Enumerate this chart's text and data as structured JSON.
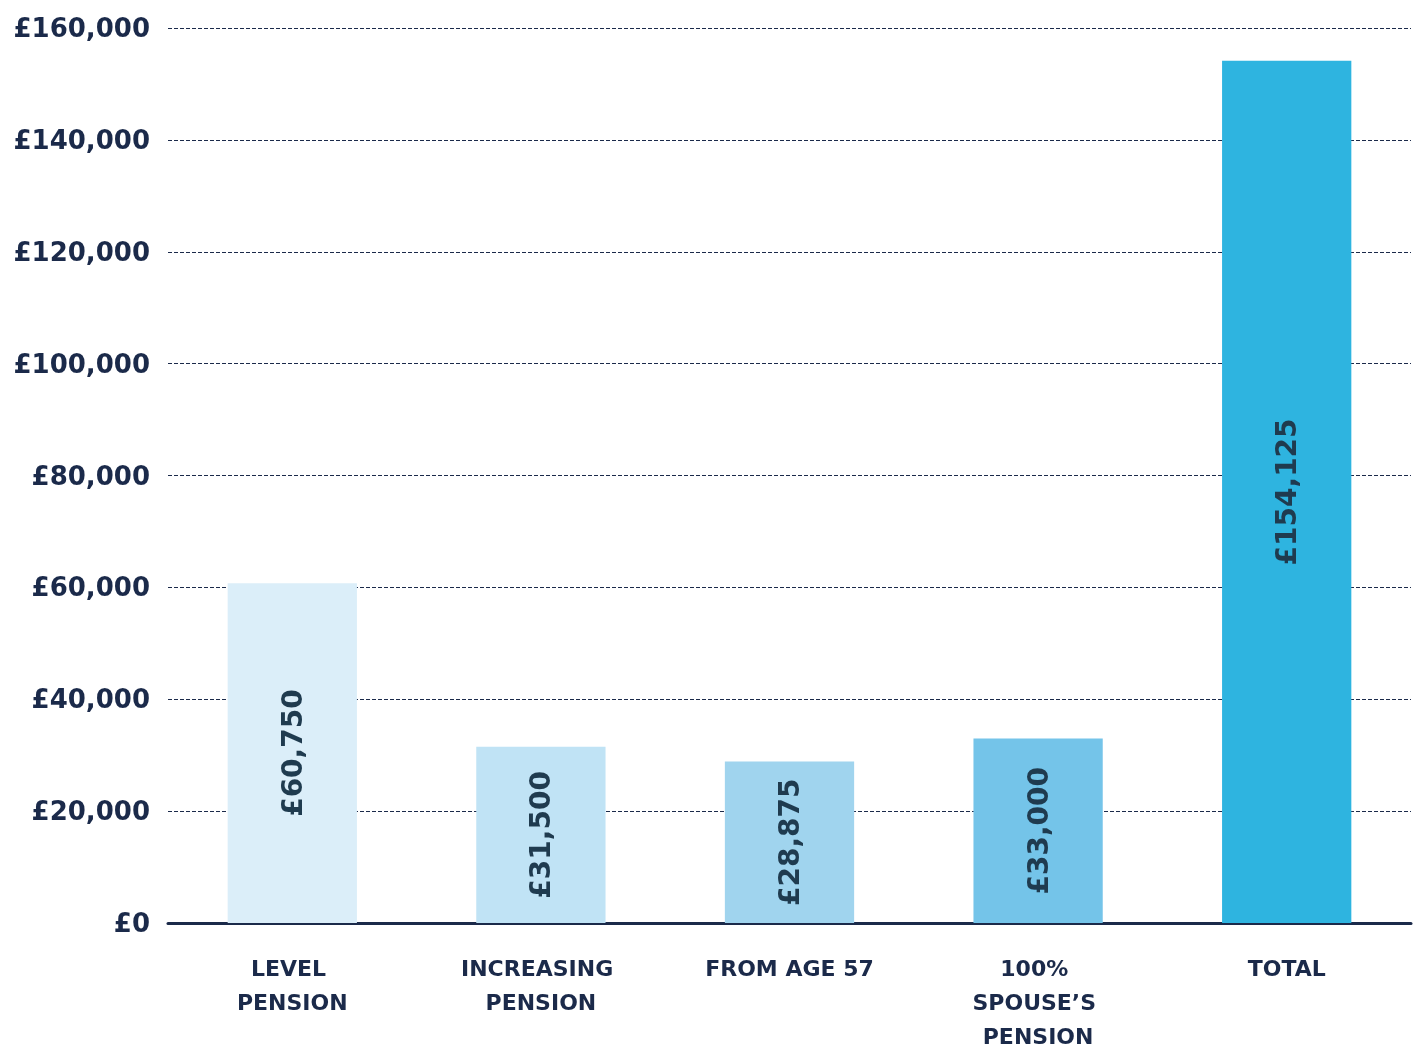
{
  "chart_data": {
    "type": "bar",
    "categories": [
      "LEVEL PENSION",
      "INCREASING PENSION",
      "FROM AGE 57",
      "100% SPOUSE’S PENSION",
      "TOTAL"
    ],
    "values": [
      60750,
      31500,
      28875,
      33000,
      154125
    ],
    "colors": [
      "#dbeef9",
      "#c0e3f5",
      "#a0d4ee",
      "#74c4e9",
      "#2eb4e0"
    ],
    "value_labels": [
      "£60,750",
      "£31,500",
      "£28,875",
      "£33,000",
      "£154,125"
    ],
    "ylim": [
      0,
      160000
    ],
    "yticks": [
      {
        "value": 0,
        "label": "£0"
      },
      {
        "value": 20000,
        "label": "£20,000"
      },
      {
        "value": 40000,
        "label": "£40,000"
      },
      {
        "value": 60000,
        "label": "£60,000"
      },
      {
        "value": 80000,
        "label": "£80,000"
      },
      {
        "value": 100000,
        "label": "£100,000"
      },
      {
        "value": 120000,
        "label": "£120,000"
      },
      {
        "value": 140000,
        "label": "£140,000"
      },
      {
        "value": 160000,
        "label": "£160,000"
      }
    ],
    "grid": "y"
  }
}
